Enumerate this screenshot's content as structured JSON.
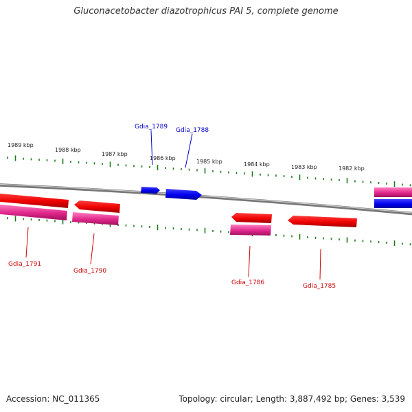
{
  "title": "Gluconacetobacter diazotrophicus PAI 5, complete genome",
  "footer": {
    "accession": "Accession: NC_011365",
    "summary": "Topology: circular; Length: 3,887,492 bp; Genes: 3,539"
  },
  "scale_labels": [
    "1989 kbp",
    "1988 kbp",
    "1987 kbp",
    "1986 kbp",
    "1985 kbp",
    "1984 kbp",
    "1983 kbp",
    "1982 kbp"
  ],
  "genes": {
    "forward": [
      "Gdia_1789",
      "Gdia_1788"
    ],
    "reverse": [
      "Gdia_1791",
      "Gdia_1790",
      "Gdia_1786",
      "Gdia_1785"
    ]
  },
  "colors": {
    "forward_cds": "#0000ee",
    "reverse_cds": "#ee0000",
    "reverse_rna": "#e0288c",
    "forward_label": "#0000cc",
    "reverse_label": "#cc0000",
    "tick": "#1a7a1a",
    "backbone": "#888888"
  }
}
